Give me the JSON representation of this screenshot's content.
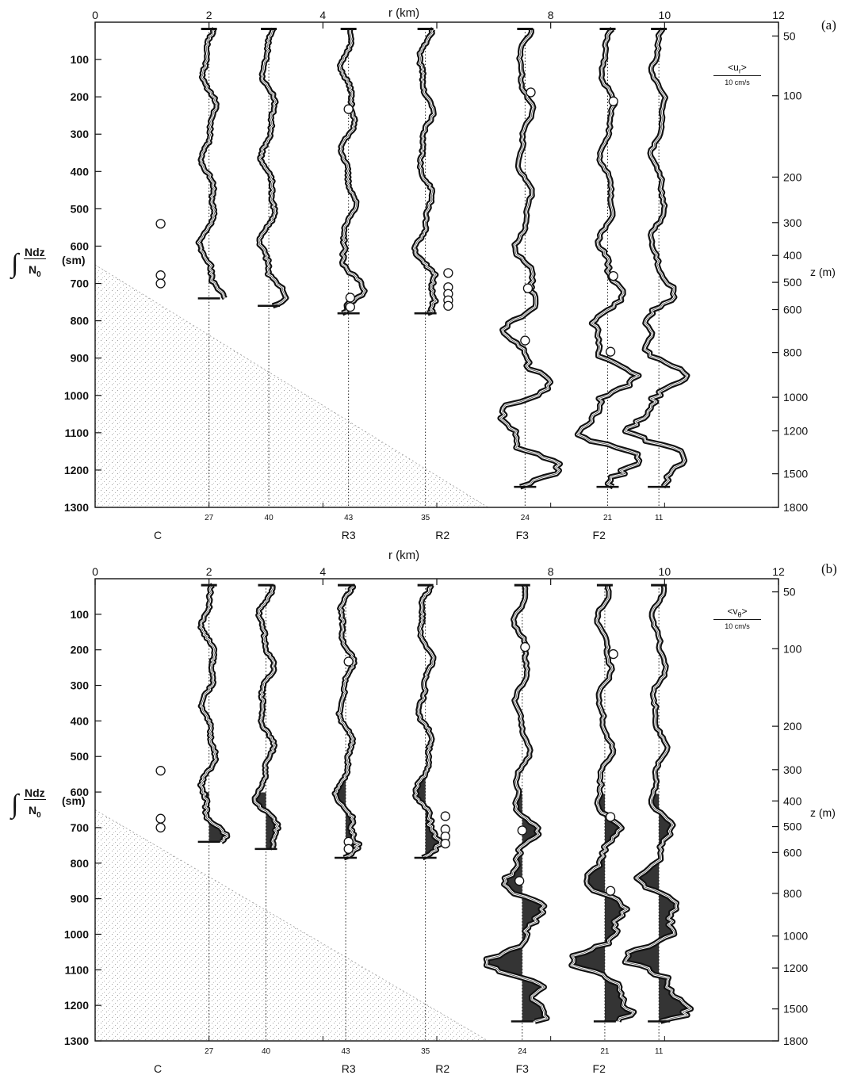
{
  "figure": {
    "panels": [
      {
        "panel_label": "(a)",
        "top_axis_label": "r  (km)",
        "left_axis_label": {
          "integral": "∫",
          "numerator": "Ndz",
          "denominator": "N",
          "denominator_sub": "0",
          "unit": "(sm)"
        },
        "right_axis_label": "z (m)",
        "scale_bar": {
          "label": "<u",
          "label_sub": "r",
          "label_close": ">",
          "scale": "10 cm/s"
        }
      },
      {
        "panel_label": "(b)",
        "top_axis_label": "r  (km)",
        "left_axis_label": {
          "integral": "∫",
          "numerator": "Ndz",
          "denominator": "N",
          "denominator_sub": "0",
          "unit": "(sm)"
        },
        "right_axis_label": "z (m)",
        "scale_bar": {
          "label": "<v",
          "label_sub": "θ",
          "label_close": ">",
          "scale": "10 cm/s"
        }
      }
    ]
  },
  "chart_data": [
    {
      "type": "line",
      "x_axis": {
        "label": "r  (km)",
        "range": [
          0,
          12
        ],
        "ticks": [
          0,
          2,
          4,
          6,
          8,
          10,
          12
        ],
        "tick_labels": [
          "0",
          "2",
          "4",
          "",
          "8",
          "10",
          "12"
        ]
      },
      "y_axis_left": {
        "label": "∫ Ndz/N0 (sm)",
        "range": [
          0,
          1300
        ],
        "inverted": true,
        "ticks": [
          100,
          200,
          300,
          400,
          500,
          600,
          700,
          800,
          900,
          1000,
          1100,
          1200,
          1300
        ]
      },
      "y_axis_right": {
        "label": "z (m)",
        "ticks": [
          50,
          100,
          200,
          300,
          400,
          500,
          600,
          800,
          1000,
          1200,
          1500,
          1800
        ],
        "tick_positions_sm": [
          37,
          197,
          415,
          537,
          625,
          697,
          770,
          885,
          1005,
          1095,
          1210,
          1300
        ]
      },
      "station_markers": [
        {
          "label": "C",
          "r": 1.1
        },
        {
          "label": "R3",
          "r": 4.45
        },
        {
          "label": "R2",
          "r": 6.1
        },
        {
          "label": "F3",
          "r": 7.5
        },
        {
          "label": "F2",
          "r": 8.85
        }
      ],
      "profiles": [
        {
          "label": "27",
          "r": 2.0,
          "depth_max": 740,
          "seed": 11
        },
        {
          "label": "40",
          "r": 3.05,
          "depth_max": 760,
          "seed": 23
        },
        {
          "label": "43",
          "r": 4.45,
          "depth_max": 780,
          "seed": 37
        },
        {
          "label": "35",
          "r": 5.8,
          "depth_max": 780,
          "seed": 41
        },
        {
          "label": "24",
          "r": 7.55,
          "depth_max": 1245,
          "seed": 53
        },
        {
          "label": "21",
          "r": 9.0,
          "depth_max": 1245,
          "seed": 67
        },
        {
          "label": "11",
          "r": 9.9,
          "depth_max": 1245,
          "seed": 79
        }
      ],
      "casts": [
        {
          "r": 1.15,
          "depth": 540
        },
        {
          "r": 1.15,
          "depth": 678
        },
        {
          "r": 1.15,
          "depth": 700
        },
        {
          "r": 4.45,
          "depth": 233
        },
        {
          "r": 4.48,
          "depth": 738
        },
        {
          "r": 4.48,
          "depth": 763
        },
        {
          "r": 6.2,
          "depth": 672
        },
        {
          "r": 6.2,
          "depth": 710
        },
        {
          "r": 6.2,
          "depth": 728
        },
        {
          "r": 6.2,
          "depth": 745
        },
        {
          "r": 6.2,
          "depth": 760
        },
        {
          "r": 7.65,
          "depth": 188
        },
        {
          "r": 7.6,
          "depth": 713
        },
        {
          "r": 7.55,
          "depth": 853
        },
        {
          "r": 9.1,
          "depth": 212
        },
        {
          "r": 9.1,
          "depth": 680
        },
        {
          "r": 9.05,
          "depth": 883
        }
      ],
      "scale_bar_cm_s": 10
    },
    {
      "type": "line",
      "x_axis": {
        "label": "r  (km)",
        "range": [
          0,
          12
        ],
        "ticks": [
          0,
          2,
          4,
          6,
          8,
          10,
          12
        ],
        "tick_labels": [
          "0",
          "2",
          "4",
          "",
          "8",
          "10",
          "12"
        ]
      },
      "y_axis_left": {
        "label": "∫ Ndz/N0 (sm)",
        "range": [
          0,
          1300
        ],
        "inverted": true,
        "ticks": [
          100,
          200,
          300,
          400,
          500,
          600,
          700,
          800,
          900,
          1000,
          1100,
          1200,
          1300
        ]
      },
      "y_axis_right": {
        "label": "z (m)",
        "ticks": [
          50,
          100,
          200,
          300,
          400,
          500,
          600,
          800,
          1000,
          1200,
          1500,
          1800
        ],
        "tick_positions_sm": [
          37,
          197,
          415,
          537,
          625,
          697,
          770,
          885,
          1005,
          1095,
          1210,
          1300
        ]
      },
      "station_markers": [
        {
          "label": "C",
          "r": 1.1
        },
        {
          "label": "R3",
          "r": 4.45
        },
        {
          "label": "R2",
          "r": 6.1
        },
        {
          "label": "F3",
          "r": 7.5
        },
        {
          "label": "F2",
          "r": 8.85
        }
      ],
      "profiles": [
        {
          "label": "27",
          "r": 2.0,
          "depth_max": 740,
          "seed": 13,
          "fill_from": 600
        },
        {
          "label": "40",
          "r": 3.0,
          "depth_max": 760,
          "seed": 29,
          "fill_from": 600
        },
        {
          "label": "43",
          "r": 4.4,
          "depth_max": 785,
          "seed": 31,
          "fill_from": 560
        },
        {
          "label": "35",
          "r": 5.8,
          "depth_max": 785,
          "seed": 43,
          "fill_from": 560
        },
        {
          "label": "24",
          "r": 7.5,
          "depth_max": 1245,
          "seed": 59,
          "fill_from": 600
        },
        {
          "label": "21",
          "r": 8.95,
          "depth_max": 1245,
          "seed": 71,
          "fill_from": 600
        },
        {
          "label": "11",
          "r": 9.9,
          "depth_max": 1245,
          "seed": 83,
          "fill_from": 600
        }
      ],
      "casts": [
        {
          "r": 1.15,
          "depth": 540
        },
        {
          "r": 1.15,
          "depth": 675
        },
        {
          "r": 1.15,
          "depth": 700
        },
        {
          "r": 4.45,
          "depth": 233
        },
        {
          "r": 4.45,
          "depth": 740
        },
        {
          "r": 4.45,
          "depth": 760
        },
        {
          "r": 6.15,
          "depth": 668
        },
        {
          "r": 6.15,
          "depth": 705
        },
        {
          "r": 6.15,
          "depth": 725
        },
        {
          "r": 6.15,
          "depth": 745
        },
        {
          "r": 7.55,
          "depth": 192
        },
        {
          "r": 7.5,
          "depth": 708
        },
        {
          "r": 7.45,
          "depth": 850
        },
        {
          "r": 9.1,
          "depth": 212
        },
        {
          "r": 9.05,
          "depth": 670
        },
        {
          "r": 9.05,
          "depth": 878
        }
      ],
      "scale_bar_cm_s": 10
    }
  ]
}
